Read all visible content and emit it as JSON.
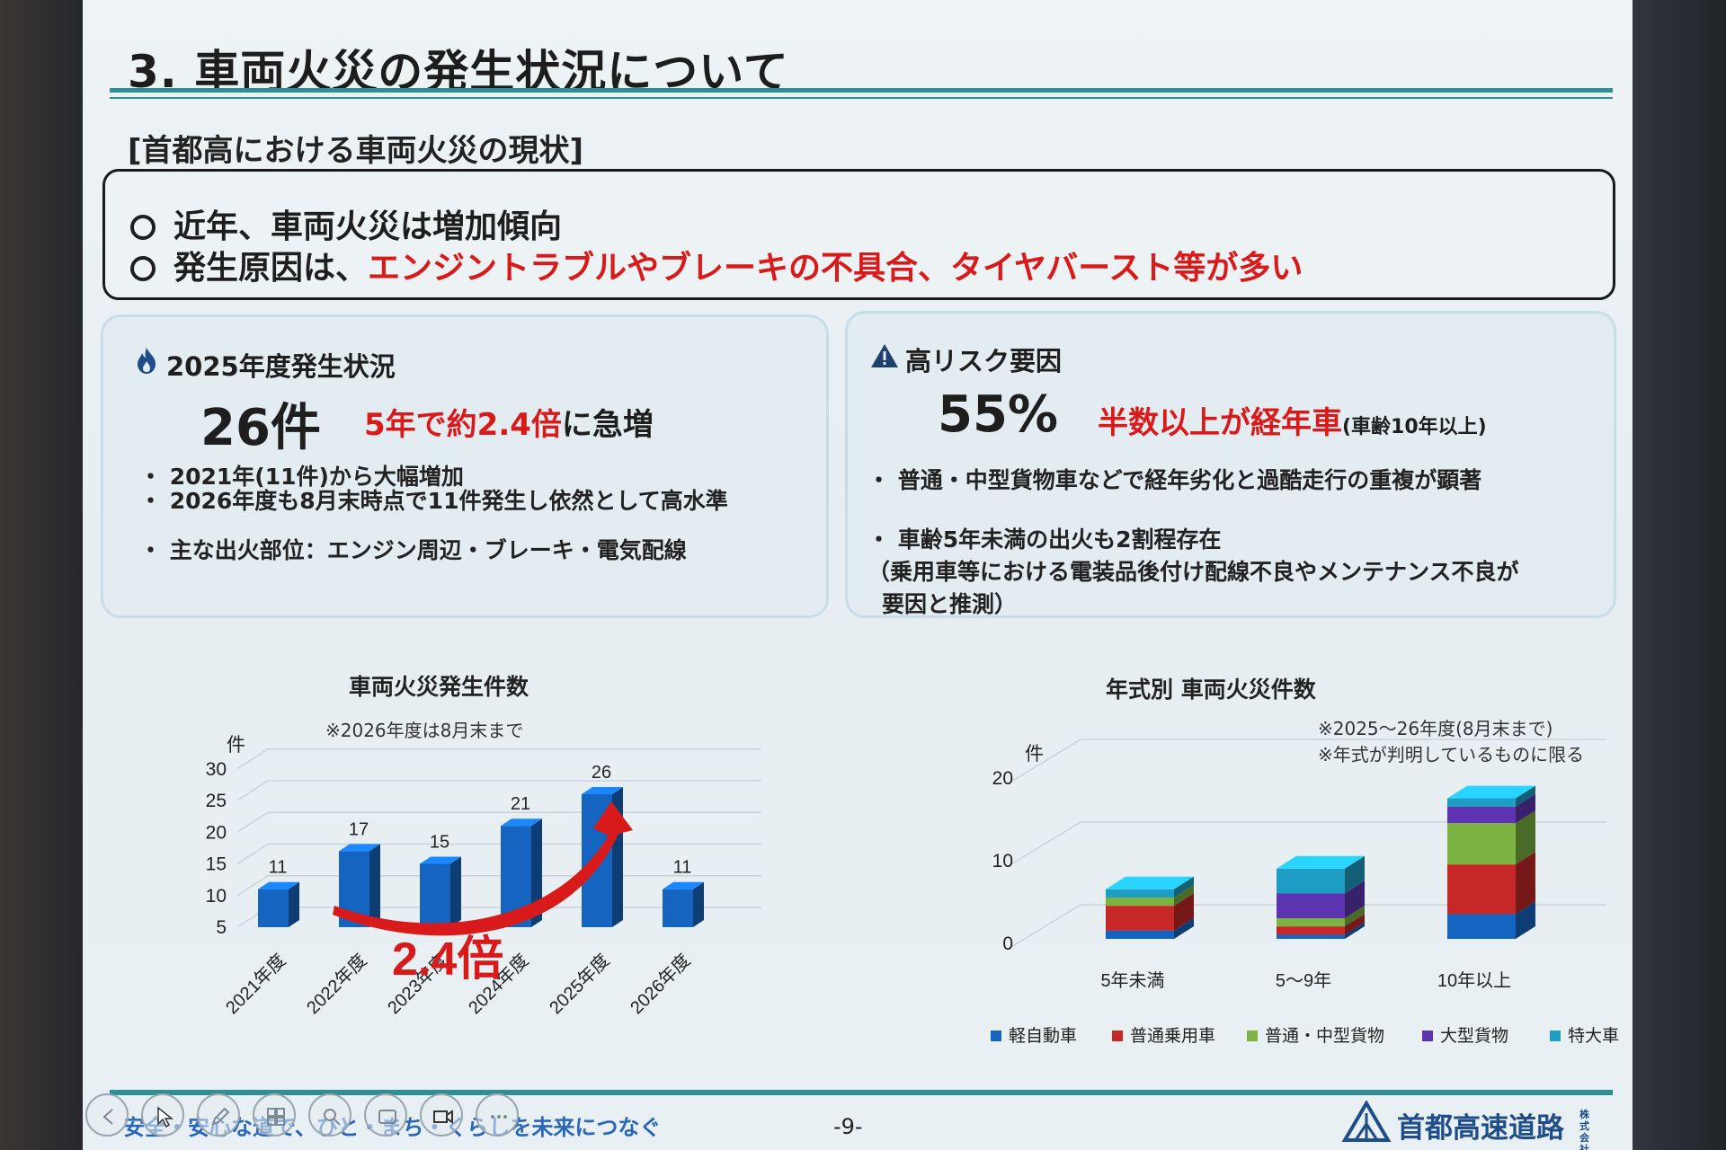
{
  "slide": {
    "title": "3. 車両火災の発生状況について",
    "subheading": "[首都高における車両火災の現状]",
    "summary": {
      "line1": "近年、車両火災は増加傾向",
      "line2_prefix": "発生原因は、",
      "line2_highlight": "エンジントラブルやブレーキの不具合、タイヤバースト等が多い"
    },
    "left_panel": {
      "heading": "2025年度発生状況",
      "big_value": "26件",
      "highlight_red": "5年で約2.4倍",
      "highlight_black": "に急増",
      "bullet1": "・ 2021年(11件)から大幅増加",
      "bullet2": "・ 2026年度も8月末時点で11件発生し依然として高水準",
      "bullet3": "・ 主な出火部位：エンジン周辺・ブレーキ・電気配線"
    },
    "right_panel": {
      "heading": "高リスク要因",
      "big_value": "55%",
      "highlight_red": "半数以上が経年車",
      "highlight_small": "(車齢10年以上)",
      "bullet1": "・ 普通・中型貨物車などで経年劣化と過酷走行の重複が顕著",
      "bullet2": "・ 車齢5年未満の出火も2割程存在",
      "bullet2_cont1": "（乗用車等における電装品後付け配線不良やメンテナンス不良が",
      "bullet2_cont2": "要因と推測）"
    },
    "footer": {
      "slogan": "安全・安心な道で、ひと・まち・くらしを未来につなぐ",
      "page_number": "-9-",
      "company": "首都高速道路",
      "company_suffix": "株式会社"
    }
  },
  "icons": [
    "flame-icon",
    "warning-icon",
    "prev-slide-icon",
    "pointer-icon",
    "pen-icon",
    "slides-icon",
    "zoom-icon",
    "subtitle-icon",
    "camera-icon",
    "more-icon"
  ],
  "colors": {
    "accent_teal": "#2e8f92",
    "highlight_red": "#d81a1a",
    "bar_blue": "#1565c0",
    "light_vehicle": "#1565c0",
    "passenger": "#c62828",
    "medium_truck": "#7cb342",
    "large_truck": "#5e35b1",
    "special": "#1e9ec4"
  },
  "chart_data": [
    {
      "type": "bar",
      "title": "車両火災発生件数",
      "subtitle": "※2026年度は8月末まで",
      "ylabel": "件",
      "ylim": [
        5,
        30
      ],
      "yticks": [
        "30",
        "25",
        "20",
        "15",
        "10",
        "5"
      ],
      "categories": [
        "2021年度",
        "2022年度",
        "2023年度",
        "2024年度",
        "2025年度",
        "2026年度"
      ],
      "values": [
        11,
        17,
        15,
        21,
        26,
        11
      ],
      "annotation": "2.4倍"
    },
    {
      "type": "bar",
      "stacked": true,
      "title": "年式別 車両火災件数",
      "note1": "※2025〜26年度(8月末まで)",
      "note2": "※年式が判明しているものに限る",
      "ylabel": "件",
      "ylim": [
        0,
        20
      ],
      "yticks": [
        "20",
        "10",
        "0"
      ],
      "categories": [
        "5年未満",
        "5〜9年",
        "10年以上"
      ],
      "series": [
        {
          "name": "軽自動車",
          "values": [
            1,
            0.5,
            3
          ]
        },
        {
          "name": "普通乗用車",
          "values": [
            3,
            1,
            6
          ]
        },
        {
          "name": "普通・中型貨物",
          "values": [
            1,
            1,
            5
          ]
        },
        {
          "name": "大型貨物",
          "values": [
            0,
            3,
            2
          ]
        },
        {
          "name": "特大車",
          "values": [
            1,
            3,
            1
          ]
        }
      ],
      "legend_position": "bottom"
    }
  ]
}
